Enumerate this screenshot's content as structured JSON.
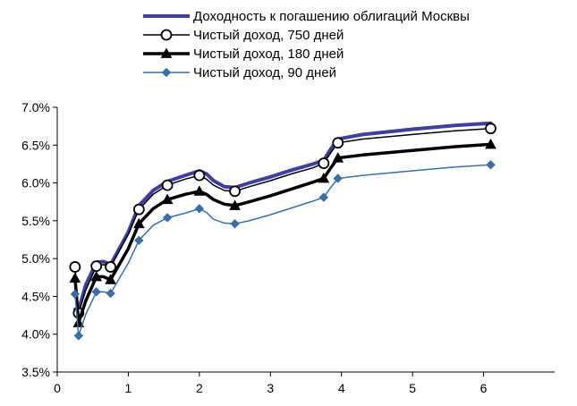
{
  "chart_data": {
    "type": "line",
    "title": "",
    "xlabel": "",
    "ylabel": "",
    "xlim": [
      0,
      7
    ],
    "ylim": [
      0.035,
      0.07
    ],
    "x_ticks": [
      "0",
      "1",
      "2",
      "3",
      "4",
      "5",
      "6"
    ],
    "y_ticks": [
      "3.5%",
      "4.0%",
      "4.5%",
      "5.0%",
      "5.5%",
      "6.0%",
      "6.5%",
      "7.0%"
    ],
    "grid": false,
    "legend_position": "top",
    "series": [
      {
        "name": "Доходность к погашению облигаций Москвы",
        "color": "#3f3f9f",
        "marker": "none",
        "x": [
          0.25,
          0.3,
          0.4,
          0.55,
          0.65,
          0.75,
          1.0,
          1.15,
          1.35,
          1.55,
          1.8,
          2.0,
          2.1,
          2.2,
          2.35,
          2.5,
          2.7,
          3.0,
          3.3,
          3.6,
          3.75,
          3.85,
          3.95,
          4.3,
          5.0,
          5.6,
          6.1
        ],
        "y": [
          0.0433,
          0.0432,
          0.0465,
          0.0495,
          0.0496,
          0.0492,
          0.0535,
          0.057,
          0.059,
          0.0602,
          0.061,
          0.0616,
          0.0612,
          0.0603,
          0.0595,
          0.0594,
          0.06,
          0.0608,
          0.0617,
          0.0625,
          0.063,
          0.0645,
          0.0658,
          0.0664,
          0.0671,
          0.0676,
          0.0679
        ]
      },
      {
        "name": "Чистый доход, 750 дней",
        "color": "#000000",
        "marker": "circle",
        "x": [
          0.25,
          0.3,
          0.4,
          0.55,
          0.65,
          0.75,
          1.0,
          1.15,
          1.35,
          1.55,
          1.8,
          2.0,
          2.1,
          2.2,
          2.35,
          2.5,
          2.7,
          3.0,
          3.3,
          3.6,
          3.75,
          3.85,
          3.95,
          4.3,
          5.0,
          5.6,
          6.1
        ],
        "y": [
          0.0489,
          0.0428,
          0.0458,
          0.049,
          0.0492,
          0.0489,
          0.0532,
          0.0565,
          0.0585,
          0.0597,
          0.0605,
          0.061,
          0.0605,
          0.0597,
          0.059,
          0.0589,
          0.0595,
          0.0603,
          0.0612,
          0.062,
          0.0626,
          0.064,
          0.0653,
          0.0658,
          0.0664,
          0.0669,
          0.0672
        ]
      },
      {
        "name": "Чистый доход, 180 дней",
        "color": "#000000",
        "marker": "triangle",
        "x": [
          0.25,
          0.3,
          0.4,
          0.55,
          0.65,
          0.75,
          1.0,
          1.15,
          1.35,
          1.55,
          1.8,
          2.0,
          2.1,
          2.2,
          2.35,
          2.5,
          2.7,
          3.0,
          3.3,
          3.6,
          3.75,
          3.85,
          3.95,
          4.3,
          5.0,
          5.6,
          6.1
        ],
        "y": [
          0.0474,
          0.0415,
          0.0444,
          0.0476,
          0.0476,
          0.0472,
          0.0513,
          0.0546,
          0.0566,
          0.0578,
          0.0585,
          0.0589,
          0.0585,
          0.0578,
          0.0572,
          0.057,
          0.0575,
          0.0583,
          0.0592,
          0.0601,
          0.0606,
          0.062,
          0.0633,
          0.0637,
          0.0643,
          0.0648,
          0.0651
        ]
      },
      {
        "name": "Чистый доход, 90 дней",
        "color": "#3a6ea5",
        "marker": "diamond",
        "x": [
          0.25,
          0.3,
          0.4,
          0.55,
          0.65,
          0.75,
          1.0,
          1.15,
          1.35,
          1.55,
          1.8,
          2.0,
          2.1,
          2.2,
          2.35,
          2.5,
          2.7,
          3.0,
          3.3,
          3.6,
          3.75,
          3.85,
          3.95,
          4.3,
          5.0,
          5.6,
          6.1
        ],
        "y": [
          0.0453,
          0.0398,
          0.0426,
          0.0456,
          0.0456,
          0.0454,
          0.0494,
          0.0524,
          0.0544,
          0.0554,
          0.056,
          0.0566,
          0.0561,
          0.0552,
          0.0547,
          0.0546,
          0.055,
          0.0558,
          0.0567,
          0.0576,
          0.0581,
          0.0594,
          0.0606,
          0.061,
          0.0616,
          0.0621,
          0.0624
        ]
      }
    ],
    "markers_shown_at": [
      0.25,
      0.3,
      0.55,
      0.75,
      1.15,
      1.55,
      2.0,
      2.5,
      3.75,
      3.95,
      6.1
    ]
  }
}
